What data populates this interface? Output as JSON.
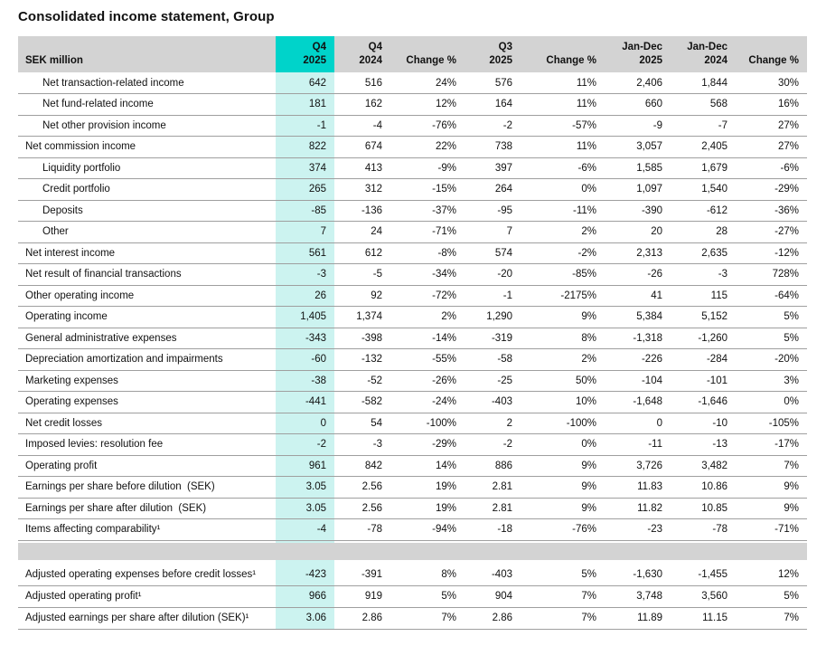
{
  "title": "Consolidated income statement, Group",
  "table": {
    "columns": [
      {
        "label": "SEK million",
        "highlight": false
      },
      {
        "label": "Q4\n2025",
        "highlight": true
      },
      {
        "label": "Q4\n2024",
        "highlight": false
      },
      {
        "label": "Change %",
        "highlight": false
      },
      {
        "label": "Q3\n2025",
        "highlight": false
      },
      {
        "label": "Change %",
        "highlight": false
      },
      {
        "label": "Jan-Dec\n2025",
        "highlight": false
      },
      {
        "label": "Jan-Dec\n2024",
        "highlight": false
      },
      {
        "label": "Change %",
        "highlight": false
      }
    ],
    "rows": [
      {
        "label": "Net transaction-related income",
        "style": "indent",
        "values": [
          "642",
          "516",
          "24%",
          "576",
          "11%",
          "2,406",
          "1,844",
          "30%"
        ]
      },
      {
        "label": "Net fund-related income",
        "style": "indent",
        "values": [
          "181",
          "162",
          "12%",
          "164",
          "11%",
          "660",
          "568",
          "16%"
        ]
      },
      {
        "label": "Net other provision income",
        "style": "indent",
        "values": [
          "-1",
          "-4",
          "-76%",
          "-2",
          "-57%",
          "-9",
          "-7",
          "27%"
        ]
      },
      {
        "label": "Net commission income",
        "style": "total",
        "values": [
          "822",
          "674",
          "22%",
          "738",
          "11%",
          "3,057",
          "2,405",
          "27%"
        ]
      },
      {
        "label": "Liquidity portfolio",
        "style": "indent",
        "values": [
          "374",
          "413",
          "-9%",
          "397",
          "-6%",
          "1,585",
          "1,679",
          "-6%"
        ]
      },
      {
        "label": "Credit portfolio",
        "style": "indent",
        "values": [
          "265",
          "312",
          "-15%",
          "264",
          "0%",
          "1,097",
          "1,540",
          "-29%"
        ]
      },
      {
        "label": "Deposits",
        "style": "indent",
        "values": [
          "-85",
          "-136",
          "-37%",
          "-95",
          "-11%",
          "-390",
          "-612",
          "-36%"
        ]
      },
      {
        "label": "Other",
        "style": "indent",
        "values": [
          "7",
          "24",
          "-71%",
          "7",
          "2%",
          "20",
          "28",
          "-27%"
        ]
      },
      {
        "label": "Net interest income",
        "style": "total",
        "values": [
          "561",
          "612",
          "-8%",
          "574",
          "-2%",
          "2,313",
          "2,635",
          "-12%"
        ]
      },
      {
        "label": "Net result of financial transactions",
        "style": "plain",
        "values": [
          "-3",
          "-5",
          "-34%",
          "-20",
          "-85%",
          "-26",
          "-3",
          "728%"
        ]
      },
      {
        "label": "Other operating income",
        "style": "plain",
        "values": [
          "26",
          "92",
          "-72%",
          "-1",
          "-2175%",
          "41",
          "115",
          "-64%"
        ]
      },
      {
        "label": "Operating income",
        "style": "total",
        "values": [
          "1,405",
          "1,374",
          "2%",
          "1,290",
          "9%",
          "5,384",
          "5,152",
          "5%"
        ]
      },
      {
        "label": "General administrative expenses",
        "style": "plain",
        "values": [
          "-343",
          "-398",
          "-14%",
          "-319",
          "8%",
          "-1,318",
          "-1,260",
          "5%"
        ]
      },
      {
        "label": "Depreciation amortization and impairments",
        "style": "plain",
        "values": [
          "-60",
          "-132",
          "-55%",
          "-58",
          "2%",
          "-226",
          "-284",
          "-20%"
        ]
      },
      {
        "label": "Marketing expenses",
        "style": "plain",
        "values": [
          "-38",
          "-52",
          "-26%",
          "-25",
          "50%",
          "-104",
          "-101",
          "3%"
        ]
      },
      {
        "label": "Operating expenses",
        "style": "total",
        "values": [
          "-441",
          "-582",
          "-24%",
          "-403",
          "10%",
          "-1,648",
          "-1,646",
          "0%"
        ]
      },
      {
        "label": "Net credit losses",
        "style": "plain",
        "values": [
          "0",
          "54",
          "-100%",
          "2",
          "-100%",
          "0",
          "-10",
          "-105%"
        ]
      },
      {
        "label": "Imposed levies: resolution fee",
        "style": "plain",
        "values": [
          "-2",
          "-3",
          "-29%",
          "-2",
          "0%",
          "-11",
          "-13",
          "-17%"
        ]
      },
      {
        "label": "Operating profit",
        "style": "total",
        "values": [
          "961",
          "842",
          "14%",
          "886",
          "9%",
          "3,726",
          "3,482",
          "7%"
        ]
      },
      {
        "label": "Earnings per share before dilution  (SEK)",
        "style": "total",
        "values": [
          "3.05",
          "2.56",
          "19%",
          "2.81",
          "9%",
          "11.83",
          "10.86",
          "9%"
        ]
      },
      {
        "label": "Earnings per share after dilution  (SEK)",
        "style": "total",
        "values": [
          "3.05",
          "2.56",
          "19%",
          "2.81",
          "9%",
          "11.82",
          "10.85",
          "9%"
        ]
      },
      {
        "label": "Items affecting comparability¹",
        "style": "plain",
        "values": [
          "-4",
          "-78",
          "-94%",
          "-18",
          "-76%",
          "-23",
          "-78",
          "-71%"
        ]
      },
      {
        "type": "spacer"
      },
      {
        "label": "Adjusted operating expenses before credit losses¹",
        "style": "total",
        "adjusted": true,
        "values": [
          "-423",
          "-391",
          "8%",
          "-403",
          "5%",
          "-1,630",
          "-1,455",
          "12%"
        ]
      },
      {
        "label": "Adjusted operating profit¹",
        "style": "total",
        "adjusted": true,
        "values": [
          "966",
          "919",
          "5%",
          "904",
          "7%",
          "3,748",
          "3,560",
          "5%"
        ]
      },
      {
        "label": "Adjusted earnings per share after dilution (SEK)¹",
        "style": "total",
        "adjusted": true,
        "values": [
          "3.06",
          "2.86",
          "7%",
          "2.86",
          "7%",
          "11.89",
          "11.15",
          "7%"
        ]
      }
    ],
    "colors": {
      "header_bg": "#d3d3d3",
      "highlight_header": "#00d3ca",
      "highlight_column": "#ccf3f0",
      "spacer_bg": "#d3d3d3",
      "border_regular": "#9f9f9f",
      "border_strong": "#474747"
    }
  }
}
